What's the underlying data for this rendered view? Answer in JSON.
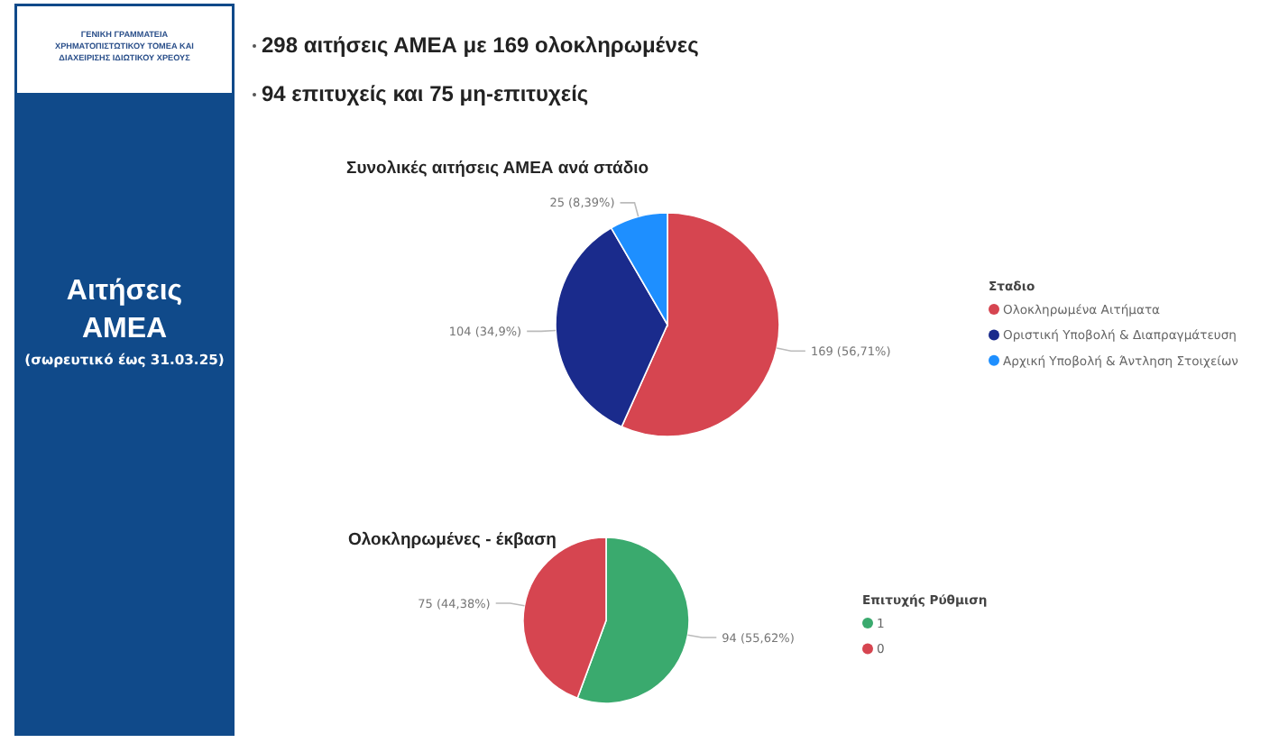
{
  "chart_data": [
    {
      "type": "other",
      "title": "Αιτήσεις ΑΜΕΑ",
      "subtitle": "(σωρευτικό έως 31.03.25)",
      "annotations": [
        "ΓΕΝΙΚΗ ΓΡΑΜΜΑΤΕΙΑ ΧΡΗΜΑΤΟΠΙΣΤΩΤΙΚΟΥ ΤΟΜΕΑ ΚΑΙ ΔΙΑΧΕΙΡΙΣΗΣ ΙΔΙΩΤΙΚΟΥ ΧΡΕΟΥΣ",
        "298 αιτήσεις ΑΜΕΑ με 169 ολοκληρωμένες",
        "94 επιτυχείς και 75 μη-επιτυχείς"
      ]
    },
    {
      "type": "pie",
      "title": "Συνολικές αιτήσεις ΑΜΕΑ ανά στάδιο",
      "legend_title": "Σταδιο",
      "categories": [
        "Ολοκληρωμένα Αιτήματα",
        "Οριστική Υποβολή & Διαπραγμάτευση",
        "Αρχική Υποβολή & Άντληση Στοιχείων"
      ],
      "values": [
        169,
        104,
        25
      ],
      "colors": [
        "#d64550",
        "#1a2b8c",
        "#1e8fff"
      ],
      "value_labels": [
        "169 (56,71%)",
        "104 (34,9%)",
        "25 (8,39%)"
      ],
      "legend": "right"
    },
    {
      "type": "pie",
      "title": "Ολοκληρωμένες - έκβαση",
      "legend_title": "Επιτυχής Ρύθμιση",
      "categories": [
        "1",
        "0"
      ],
      "values": [
        94,
        75
      ],
      "colors": [
        "#3aaa6e",
        "#d64550"
      ],
      "value_labels": [
        "94 (55,62%)",
        "75 (44,38%)"
      ],
      "legend": "right"
    }
  ]
}
